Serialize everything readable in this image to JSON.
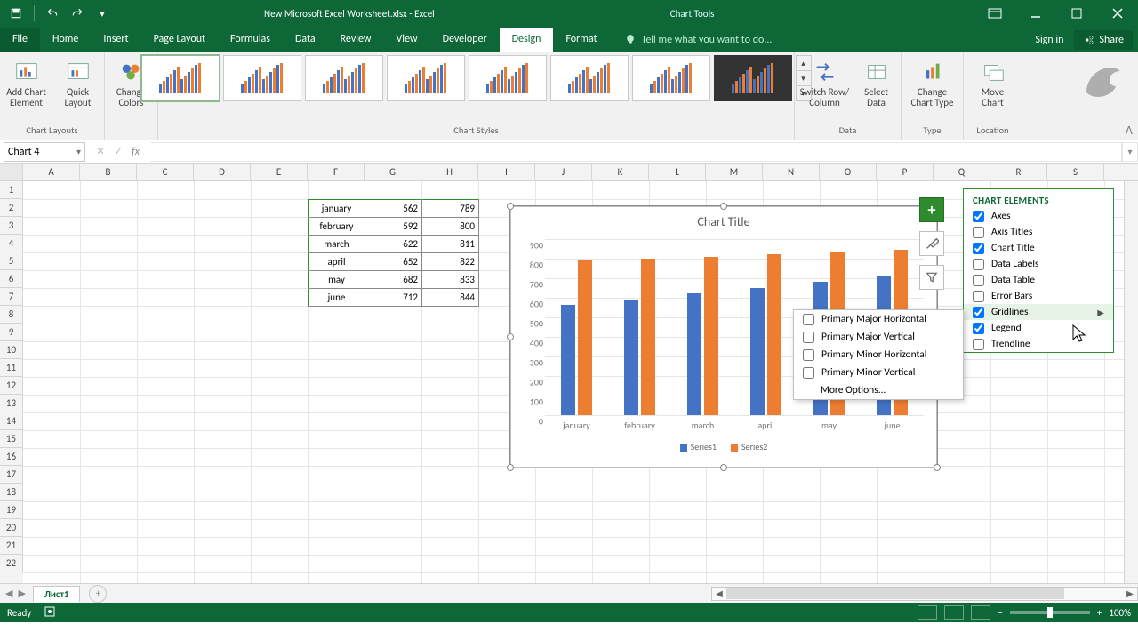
{
  "titlebar": {
    "document_title": "New Microsoft Excel Worksheet.xlsx - Excel",
    "contextual_tools": "Chart Tools"
  },
  "window_buttons": {
    "ribbon_opts": "⋯"
  },
  "tabs": {
    "file": "File",
    "home": "Home",
    "insert": "Insert",
    "page_layout": "Page Layout",
    "formulas": "Formulas",
    "data": "Data",
    "review": "Review",
    "view": "View",
    "developer": "Developer",
    "design": "Design",
    "format": "Format",
    "tell_me": "Tell me what you want to do...",
    "sign_in": "Sign in",
    "share": "Share"
  },
  "ribbon": {
    "chart_layouts": {
      "add_element": "Add Chart\nElement",
      "quick_layout": "Quick\nLayout",
      "label": "Chart Layouts"
    },
    "change_colors": "Change\nColors",
    "chart_styles_label": "Chart Styles",
    "data_group": {
      "switch": "Switch Row/\nColumn",
      "select": "Select\nData",
      "label": "Data"
    },
    "type_group": {
      "change": "Change\nChart Type",
      "label": "Type"
    },
    "location_group": {
      "move": "Move\nChart",
      "label": "Location"
    }
  },
  "formula_bar": {
    "name_box": "Chart 4"
  },
  "grid": {
    "columns": [
      "A",
      "B",
      "C",
      "D",
      "E",
      "F",
      "G",
      "H",
      "I",
      "J",
      "K",
      "L",
      "M",
      "N",
      "O",
      "P",
      "Q",
      "R",
      "S"
    ],
    "row_count": 22
  },
  "data_table": {
    "months": [
      "january",
      "february",
      "march",
      "april",
      "may",
      "june"
    ],
    "col1": [
      562,
      592,
      622,
      652,
      682,
      712
    ],
    "col2": [
      789,
      800,
      811,
      822,
      833,
      844
    ]
  },
  "chart": {
    "title": "Chart Title",
    "categories": [
      "january",
      "february",
      "march",
      "april",
      "may",
      "june"
    ],
    "series": [
      {
        "name": "Series1",
        "color": "#4472c4",
        "values": [
          562,
          592,
          622,
          652,
          682,
          712
        ]
      },
      {
        "name": "Series2",
        "color": "#ed7d31",
        "values": [
          789,
          800,
          811,
          822,
          833,
          844
        ]
      }
    ],
    "y_ticks": [
      0,
      100,
      200,
      300,
      400,
      500,
      600,
      700,
      800,
      900
    ],
    "y_max": 900,
    "grid_color": "#e6e6e6",
    "background": "#ffffff"
  },
  "chart_elements_flyout": {
    "title": "CHART ELEMENTS",
    "items": [
      {
        "label": "Axes",
        "checked": true
      },
      {
        "label": "Axis Titles",
        "checked": false
      },
      {
        "label": "Chart Title",
        "checked": true
      },
      {
        "label": "Data Labels",
        "checked": false
      },
      {
        "label": "Data Table",
        "checked": false
      },
      {
        "label": "Error Bars",
        "checked": false
      },
      {
        "label": "Gridlines",
        "checked": true,
        "hover": true
      },
      {
        "label": "Legend",
        "checked": true
      },
      {
        "label": "Trendline",
        "checked": false
      }
    ]
  },
  "gridlines_subflyout": {
    "items": [
      {
        "label": "Primary Major Horizontal",
        "checked": false
      },
      {
        "label": "Primary Major Vertical",
        "checked": false
      },
      {
        "label": "Primary Minor Horizontal",
        "checked": false
      },
      {
        "label": "Primary Minor Vertical",
        "checked": false
      }
    ],
    "more": "More Options..."
  },
  "sheet_tabs": {
    "active": "Лист1"
  },
  "statusbar": {
    "ready": "Ready",
    "zoom": "100%"
  }
}
